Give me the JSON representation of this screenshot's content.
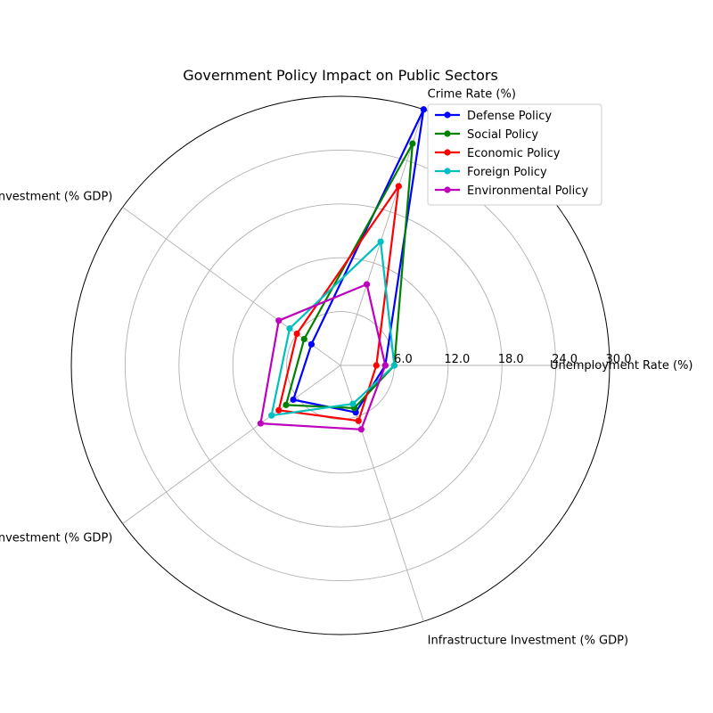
{
  "chart_data": {
    "type": "radar",
    "title": "Government Policy Impact on Public Sectors",
    "axes": [
      "Unemployment Rate (%)",
      "Crime Rate (%)",
      "Education Investment (% GDP)",
      "Healthcare Investment (% GDP)",
      "Infrastructure Investment (% GDP)"
    ],
    "radial_ticks": [
      "6.0",
      "12.0",
      "18.0",
      "24.0",
      "30.0"
    ],
    "radial_tick_values": [
      6,
      12,
      18,
      24,
      30
    ],
    "rmax": 30,
    "grid": true,
    "legend_position": "top-right",
    "series": [
      {
        "name": "Defense Policy",
        "color": "#0000ff",
        "values": [
          5.0,
          30.0,
          4.0,
          6.5,
          5.5
        ]
      },
      {
        "name": "Social Policy",
        "color": "#008000",
        "values": [
          6.0,
          26.0,
          5.0,
          7.5,
          5.0
        ]
      },
      {
        "name": "Economic Policy",
        "color": "#ff0000",
        "values": [
          4.0,
          21.0,
          6.0,
          8.5,
          6.5
        ]
      },
      {
        "name": "Foreign Policy",
        "color": "#00bfbf",
        "values": [
          6.0,
          14.5,
          7.0,
          9.5,
          4.5
        ]
      },
      {
        "name": "Environmental Policy",
        "color": "#bf00bf",
        "values": [
          5.0,
          9.5,
          8.5,
          11.0,
          7.5
        ]
      }
    ]
  }
}
